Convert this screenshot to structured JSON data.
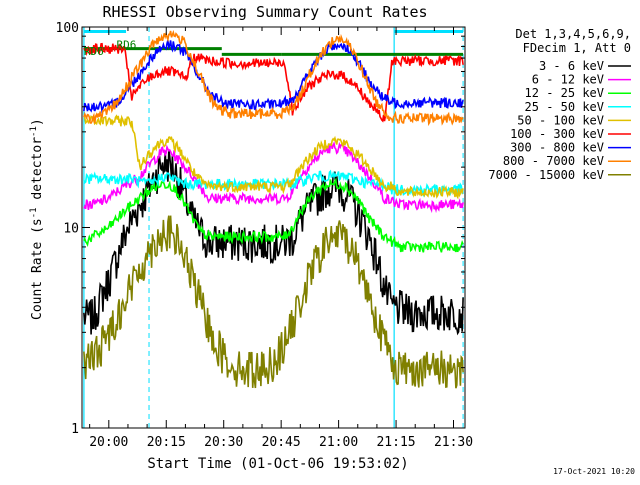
{
  "chart_data": {
    "type": "line",
    "title": "RHESSI Observing Summary Count Rates",
    "xlabel": "Start Time (01-Oct-06 19:53:02)",
    "ylabel": "Count Rate (s",
    "ylabel_sup": "-1",
    "ylabel_tail": " detector",
    "ylabel_sup2": "-1",
    "ylabel_close": ")",
    "y_scale": "log",
    "ylim": [
      1,
      100
    ],
    "xlim_minutes": [
      -7,
      93
    ],
    "x_ticks": [
      {
        "label": "20:00",
        "t": 0
      },
      {
        "label": "20:15",
        "t": 15
      },
      {
        "label": "20:30",
        "t": 30
      },
      {
        "label": "20:45",
        "t": 45
      },
      {
        "label": "21:00",
        "t": 60
      },
      {
        "label": "21:15",
        "t": 75
      },
      {
        "label": "21:30",
        "t": 90
      }
    ],
    "y_ticks": [
      {
        "label": "1",
        "v": 1
      },
      {
        "label": "10",
        "v": 10
      },
      {
        "label": "100",
        "v": 100
      }
    ],
    "legend_header": [
      "Det 1,3,4,5,6,9,",
      "FDecim 1, Att 0"
    ],
    "legend_position": "right",
    "date_stamp": "17-Oct-2021 10:20",
    "annotations": [
      {
        "label": "RD6",
        "t": -6.5,
        "v": 76,
        "color": "#008000"
      },
      {
        "label": "RD6",
        "t": 2,
        "v": 82,
        "color": "#008000"
      }
    ],
    "night_intervals": [
      [
        -6.5,
        4.5
      ],
      [
        74.5,
        92.5
      ]
    ],
    "saa_lines_dashed": [
      10.5,
      92.5
    ],
    "attenuator_levels": [
      {
        "t0": -6.5,
        "t1": 29.5,
        "v": 78,
        "color": "#008000"
      },
      {
        "t0": 29.5,
        "t1": 45,
        "v": 73,
        "color": "#008000"
      },
      {
        "t0": 45,
        "t1": 92.5,
        "v": 73,
        "color": "#008000"
      }
    ],
    "series": [
      {
        "name": "3 - 6 keV",
        "color": "#000000",
        "x": [
          -6.5,
          -4,
          -2,
          0,
          2,
          4,
          6,
          8,
          10,
          12,
          14,
          16,
          18,
          20,
          22,
          24,
          26,
          28,
          30,
          32,
          34,
          36,
          38,
          40,
          42,
          44,
          46,
          48,
          50,
          52,
          54,
          56,
          58,
          60,
          62,
          64,
          66,
          68,
          70,
          72,
          74,
          76,
          78,
          80,
          82,
          84,
          86,
          88,
          90,
          92.5
        ],
        "y": [
          3.6,
          3.6,
          4.5,
          5.5,
          7,
          9,
          11,
          13,
          15,
          18,
          21,
          21,
          18,
          14,
          11,
          9.5,
          8.5,
          8.5,
          8.5,
          8.5,
          8.5,
          8.5,
          8.5,
          8.5,
          8.5,
          8.5,
          8.5,
          9,
          11,
          12.5,
          14,
          15.5,
          16,
          16,
          15,
          13,
          11,
          9,
          7,
          5,
          4,
          4,
          3.8,
          3.8,
          3.8,
          3.8,
          3.8,
          3.8,
          3.8,
          3.8
        ]
      },
      {
        "name": "6 - 12 keV",
        "color": "#ff00ff",
        "x": [
          -6.5,
          -4,
          -2,
          0,
          2,
          4,
          6,
          8,
          10,
          12,
          14,
          16,
          18,
          20,
          22,
          24,
          26,
          28,
          30,
          32,
          34,
          36,
          38,
          40,
          42,
          44,
          46,
          48,
          50,
          52,
          54,
          56,
          58,
          60,
          62,
          64,
          66,
          68,
          70,
          72,
          74,
          76,
          78,
          80,
          82,
          84,
          86,
          88,
          90,
          92.5
        ],
        "y": [
          13,
          13,
          13.5,
          14,
          15,
          16,
          17,
          18,
          20,
          22,
          24,
          24,
          22,
          20,
          18,
          16,
          14,
          14,
          14,
          14,
          14,
          14,
          14,
          14,
          14,
          14,
          14,
          15,
          18,
          20,
          22,
          24,
          25,
          25,
          24,
          22,
          20,
          18,
          16,
          14,
          13.5,
          13,
          13,
          13,
          13,
          13,
          13,
          13,
          13,
          13
        ]
      },
      {
        "name": "12 - 25 keV",
        "color": "#00ff00",
        "x": [
          -6.5,
          -4,
          -2,
          0,
          2,
          4,
          6,
          8,
          10,
          12,
          14,
          16,
          18,
          20,
          22,
          24,
          26,
          28,
          30,
          32,
          34,
          36,
          38,
          40,
          42,
          44,
          46,
          48,
          50,
          52,
          54,
          56,
          58,
          60,
          62,
          64,
          66,
          68,
          70,
          72,
          74,
          76,
          78,
          80,
          82,
          84,
          86,
          88,
          90,
          92.5
        ],
        "y": [
          8.5,
          9,
          9.5,
          10,
          11,
          12,
          13,
          14,
          15,
          16,
          16.5,
          16.5,
          15,
          13,
          11,
          9.5,
          9,
          9,
          9,
          9,
          9,
          9,
          9,
          9,
          9,
          9,
          9,
          10,
          12,
          13.5,
          15,
          16,
          16.5,
          16.5,
          16,
          14.5,
          13,
          11,
          10,
          9,
          8.5,
          8,
          8,
          8,
          8,
          8,
          8,
          8,
          8,
          8
        ]
      },
      {
        "name": "25 - 50 keV",
        "color": "#00ffff",
        "x": [
          -6.5,
          -4,
          -2,
          0,
          2,
          4,
          6,
          8,
          10,
          12,
          14,
          16,
          18,
          20,
          22,
          24,
          26,
          28,
          30,
          32,
          34,
          36,
          38,
          40,
          42,
          44,
          46,
          48,
          50,
          52,
          54,
          56,
          58,
          60,
          62,
          64,
          66,
          68,
          70,
          72,
          74,
          76,
          78,
          80,
          82,
          84,
          86,
          88,
          90,
          92.5
        ],
        "y": [
          17.5,
          17.5,
          17.5,
          17.5,
          17.5,
          17.5,
          17.5,
          17,
          16.5,
          17,
          18,
          18,
          17,
          16.5,
          16.5,
          16.5,
          16.5,
          16.5,
          16.5,
          16.5,
          16.5,
          16.5,
          16.5,
          16.5,
          16.5,
          16.5,
          16.5,
          16.5,
          17,
          17.5,
          18,
          18,
          18,
          18,
          18,
          17.5,
          17,
          16.5,
          16.5,
          16.5,
          15.5,
          15.5,
          15.5,
          15.5,
          15.5,
          15.5,
          15.5,
          15.5,
          15.5,
          15.5
        ]
      },
      {
        "name": "50 - 100 keV",
        "color": "#e0c000",
        "x": [
          -6.5,
          -4,
          -2,
          0,
          2,
          4,
          6,
          8,
          10,
          12,
          14,
          16,
          18,
          20,
          22,
          24,
          26,
          28,
          30,
          32,
          34,
          36,
          38,
          40,
          42,
          44,
          46,
          48,
          50,
          52,
          54,
          56,
          58,
          60,
          62,
          64,
          66,
          68,
          70,
          72,
          74,
          76,
          78,
          80,
          82,
          84,
          86,
          88,
          90,
          92.5
        ],
        "y": [
          34,
          34,
          34,
          34,
          34,
          34,
          34,
          20,
          23,
          25,
          27,
          27,
          25,
          22,
          19,
          17,
          16,
          16,
          16,
          16,
          16,
          16,
          16,
          16,
          16,
          16,
          16,
          17,
          20,
          22,
          24,
          26,
          27,
          27,
          26,
          24,
          22,
          20,
          18,
          16,
          16,
          15,
          15,
          15,
          15,
          15,
          15,
          15,
          15,
          15
        ]
      },
      {
        "name": "100 - 300 keV",
        "color": "#ff0000",
        "x": [
          -6.5,
          -4,
          -2,
          0,
          2,
          4,
          6,
          8,
          10,
          12,
          14,
          16,
          18,
          20,
          22,
          24,
          26,
          28,
          30,
          32,
          34,
          36,
          38,
          40,
          42,
          44,
          46,
          48,
          50,
          52,
          54,
          56,
          58,
          60,
          62,
          64,
          66,
          68,
          70,
          72,
          74,
          76,
          78,
          80,
          82,
          84,
          86,
          88,
          90,
          92.5
        ],
        "y": [
          78,
          78,
          78,
          78,
          78,
          78,
          45,
          50,
          55,
          58,
          60,
          60,
          58,
          55,
          70,
          70,
          68,
          67,
          67,
          66,
          66,
          66,
          66,
          66,
          66,
          66,
          66,
          38,
          44,
          50,
          54,
          56,
          58,
          58,
          56,
          52,
          47,
          42,
          38,
          34,
          68,
          68,
          68,
          68,
          68,
          68,
          68,
          68,
          68,
          68
        ]
      },
      {
        "name": "300 - 800 keV",
        "color": "#0000ff",
        "x": [
          -6.5,
          -4,
          -2,
          0,
          2,
          4,
          6,
          8,
          10,
          12,
          14,
          16,
          18,
          20,
          22,
          24,
          26,
          28,
          30,
          32,
          34,
          36,
          38,
          40,
          42,
          44,
          46,
          48,
          50,
          52,
          54,
          56,
          58,
          60,
          62,
          64,
          66,
          68,
          70,
          72,
          74,
          76,
          78,
          80,
          82,
          84,
          86,
          88,
          90,
          92.5
        ],
        "y": [
          40,
          40,
          40,
          40,
          42,
          46,
          52,
          58,
          66,
          74,
          80,
          82,
          80,
          74,
          64,
          55,
          48,
          44,
          42,
          41,
          41,
          41,
          41,
          41,
          41,
          41,
          42,
          44,
          50,
          58,
          66,
          74,
          80,
          82,
          80,
          72,
          62,
          54,
          48,
          44,
          42,
          42,
          42,
          42,
          42,
          42,
          42,
          42,
          42,
          42
        ]
      },
      {
        "name": "800 - 7000 keV",
        "color": "#ff8000",
        "x": [
          -6.5,
          -4,
          -2,
          0,
          2,
          4,
          6,
          8,
          10,
          12,
          14,
          16,
          18,
          20,
          22,
          24,
          26,
          28,
          30,
          32,
          34,
          36,
          38,
          40,
          42,
          44,
          46,
          48,
          50,
          52,
          54,
          56,
          58,
          60,
          62,
          64,
          66,
          68,
          70,
          72,
          74,
          76,
          78,
          80,
          82,
          84,
          86,
          88,
          90,
          92.5
        ],
        "y": [
          35,
          35,
          36,
          38,
          42,
          48,
          56,
          64,
          74,
          84,
          90,
          92,
          90,
          82,
          68,
          56,
          46,
          40,
          38,
          37,
          37,
          37,
          37,
          37,
          37,
          37,
          38,
          40,
          46,
          56,
          66,
          76,
          84,
          88,
          84,
          74,
          62,
          50,
          42,
          38,
          35,
          35,
          35,
          35,
          35,
          35,
          35,
          35,
          35,
          35
        ]
      },
      {
        "name": "7000 - 15000 keV",
        "color": "#808000",
        "x": [
          -6.5,
          -4,
          -2,
          0,
          2,
          4,
          6,
          8,
          10,
          12,
          14,
          16,
          18,
          20,
          22,
          24,
          26,
          28,
          30,
          32,
          34,
          36,
          38,
          40,
          42,
          44,
          46,
          48,
          50,
          52,
          54,
          56,
          58,
          60,
          62,
          64,
          66,
          68,
          70,
          72,
          74,
          76,
          78,
          80,
          82,
          84,
          86,
          88,
          90,
          92.5
        ],
        "y": [
          2.1,
          2.3,
          2.6,
          3,
          3.6,
          4.3,
          5.2,
          6.2,
          7.3,
          8.5,
          9.5,
          9.5,
          8.5,
          7,
          5.5,
          4.2,
          3.3,
          2.7,
          2.3,
          2.1,
          2,
          2,
          2,
          2,
          2.1,
          2.3,
          2.7,
          3.3,
          4.3,
          5.5,
          6.8,
          8,
          9,
          9.2,
          8.8,
          7.5,
          6,
          4.6,
          3.5,
          2.7,
          2.2,
          2,
          2,
          2,
          2,
          2,
          2,
          2,
          2,
          2
        ]
      }
    ]
  }
}
